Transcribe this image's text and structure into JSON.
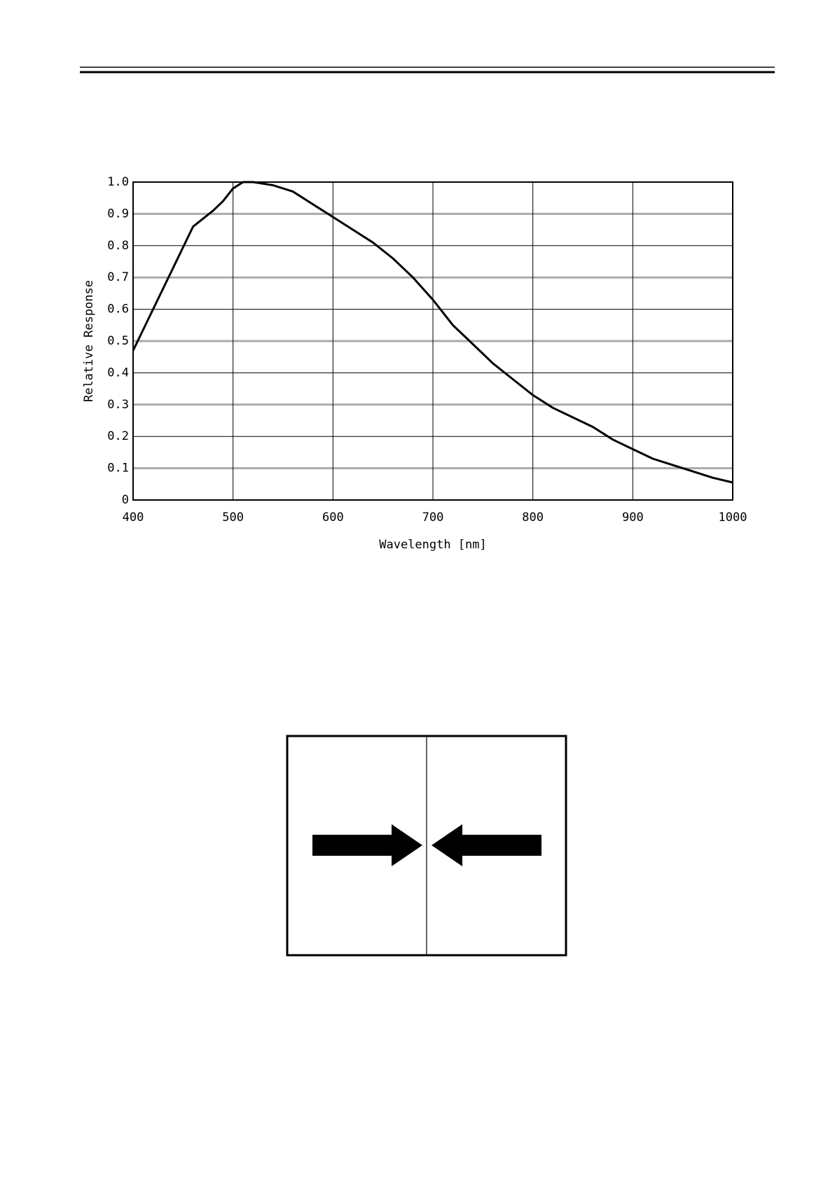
{
  "chart_data": {
    "type": "line",
    "xlabel": "Wavelength [nm]",
    "ylabel": "Relative Response",
    "x": [
      400,
      420,
      440,
      460,
      480,
      490,
      500,
      510,
      520,
      540,
      560,
      580,
      600,
      620,
      640,
      660,
      680,
      700,
      720,
      740,
      760,
      780,
      800,
      820,
      840,
      860,
      880,
      900,
      920,
      940,
      960,
      980,
      1000
    ],
    "values": [
      0.47,
      0.6,
      0.73,
      0.86,
      0.91,
      0.94,
      0.98,
      1.0,
      1.0,
      0.99,
      0.97,
      0.93,
      0.89,
      0.85,
      0.81,
      0.76,
      0.7,
      0.63,
      0.55,
      0.49,
      0.43,
      0.38,
      0.33,
      0.29,
      0.26,
      0.23,
      0.19,
      0.16,
      0.13,
      0.11,
      0.09,
      0.07,
      0.055
    ],
    "color": "#000000",
    "xlim": [
      400,
      1000
    ],
    "xticks": [
      400,
      500,
      600,
      700,
      800,
      900,
      1000
    ],
    "ylim": [
      0,
      1
    ],
    "yticks": [
      0,
      0.1,
      0.2,
      0.3,
      0.4,
      0.5,
      0.6,
      0.7,
      0.8,
      0.9,
      {
        "value": 1,
        "label": "1.0"
      }
    ],
    "grid": true
  }
}
